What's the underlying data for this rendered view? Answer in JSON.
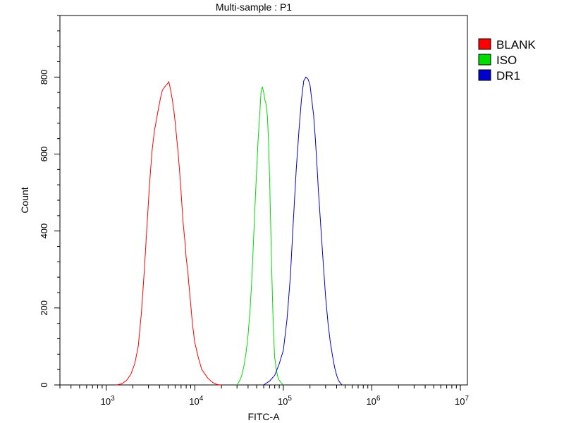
{
  "chart_data": {
    "type": "line",
    "title": "Multi-sample : P1",
    "xlabel": "FITC-A",
    "ylabel": "Count",
    "x_scale": "log",
    "xlim": [
      300,
      12000000
    ],
    "ylim": [
      0,
      960
    ],
    "x_tick_labels": [
      {
        "base": "10",
        "exp": "3",
        "value": 1000
      },
      {
        "base": "10",
        "exp": "4",
        "value": 10000
      },
      {
        "base": "10",
        "exp": "5",
        "value": 100000
      },
      {
        "base": "10",
        "exp": "6",
        "value": 1000000
      },
      {
        "base": "10",
        "exp": "7",
        "value": 10000000
      }
    ],
    "y_ticks": [
      0,
      200,
      400,
      600,
      800
    ],
    "grid": false,
    "legend_position": "right",
    "series": [
      {
        "name": "BLANK",
        "color": "#ff0000",
        "points": [
          [
            1300,
            0
          ],
          [
            1500,
            3
          ],
          [
            1700,
            12
          ],
          [
            1900,
            28
          ],
          [
            2100,
            55
          ],
          [
            2300,
            100
          ],
          [
            2500,
            190
          ],
          [
            2700,
            300
          ],
          [
            2900,
            420
          ],
          [
            3100,
            530
          ],
          [
            3300,
            610
          ],
          [
            3500,
            660
          ],
          [
            3700,
            690
          ],
          [
            3900,
            720
          ],
          [
            4100,
            745
          ],
          [
            4300,
            765
          ],
          [
            4500,
            772
          ],
          [
            4700,
            778
          ],
          [
            4900,
            782
          ],
          [
            5100,
            788
          ],
          [
            5300,
            770
          ],
          [
            5600,
            740
          ],
          [
            5900,
            700
          ],
          [
            6200,
            650
          ],
          [
            6500,
            600
          ],
          [
            6800,
            545
          ],
          [
            7100,
            480
          ],
          [
            7400,
            420
          ],
          [
            7700,
            380
          ],
          [
            8000,
            330
          ],
          [
            8300,
            300
          ],
          [
            8600,
            260
          ],
          [
            9000,
            210
          ],
          [
            9400,
            160
          ],
          [
            10000,
            110
          ],
          [
            11000,
            70
          ],
          [
            12000,
            40
          ],
          [
            14000,
            18
          ],
          [
            16000,
            6
          ],
          [
            18000,
            1
          ],
          [
            20000,
            0
          ]
        ]
      },
      {
        "name": "ISO",
        "color": "#00dd00",
        "points": [
          [
            30000,
            0
          ],
          [
            32000,
            10
          ],
          [
            34000,
            25
          ],
          [
            36000,
            50
          ],
          [
            38000,
            85
          ],
          [
            40000,
            130
          ],
          [
            42000,
            190
          ],
          [
            44000,
            270
          ],
          [
            46000,
            370
          ],
          [
            48000,
            470
          ],
          [
            50000,
            560
          ],
          [
            52000,
            640
          ],
          [
            54000,
            700
          ],
          [
            56000,
            760
          ],
          [
            58000,
            775
          ],
          [
            60000,
            760
          ],
          [
            62000,
            740
          ],
          [
            64000,
            730
          ],
          [
            66000,
            700
          ],
          [
            68000,
            640
          ],
          [
            70000,
            540
          ],
          [
            72000,
            420
          ],
          [
            74000,
            300
          ],
          [
            76000,
            200
          ],
          [
            78000,
            120
          ],
          [
            80000,
            70
          ],
          [
            84000,
            35
          ],
          [
            88000,
            15
          ],
          [
            95000,
            5
          ],
          [
            100000,
            0
          ]
        ]
      },
      {
        "name": "DR1",
        "color": "#0000cc",
        "points": [
          [
            60000,
            0
          ],
          [
            70000,
            10
          ],
          [
            80000,
            25
          ],
          [
            90000,
            55
          ],
          [
            100000,
            90
          ],
          [
            110000,
            170
          ],
          [
            120000,
            280
          ],
          [
            130000,
            430
          ],
          [
            140000,
            560
          ],
          [
            150000,
            660
          ],
          [
            160000,
            740
          ],
          [
            170000,
            790
          ],
          [
            180000,
            800
          ],
          [
            190000,
            795
          ],
          [
            200000,
            780
          ],
          [
            210000,
            740
          ],
          [
            220000,
            700
          ],
          [
            230000,
            640
          ],
          [
            240000,
            570
          ],
          [
            250000,
            500
          ],
          [
            260000,
            440
          ],
          [
            280000,
            330
          ],
          [
            300000,
            230
          ],
          [
            320000,
            160
          ],
          [
            340000,
            110
          ],
          [
            360000,
            75
          ],
          [
            380000,
            45
          ],
          [
            400000,
            25
          ],
          [
            420000,
            12
          ],
          [
            440000,
            5
          ],
          [
            460000,
            0
          ]
        ]
      }
    ]
  }
}
